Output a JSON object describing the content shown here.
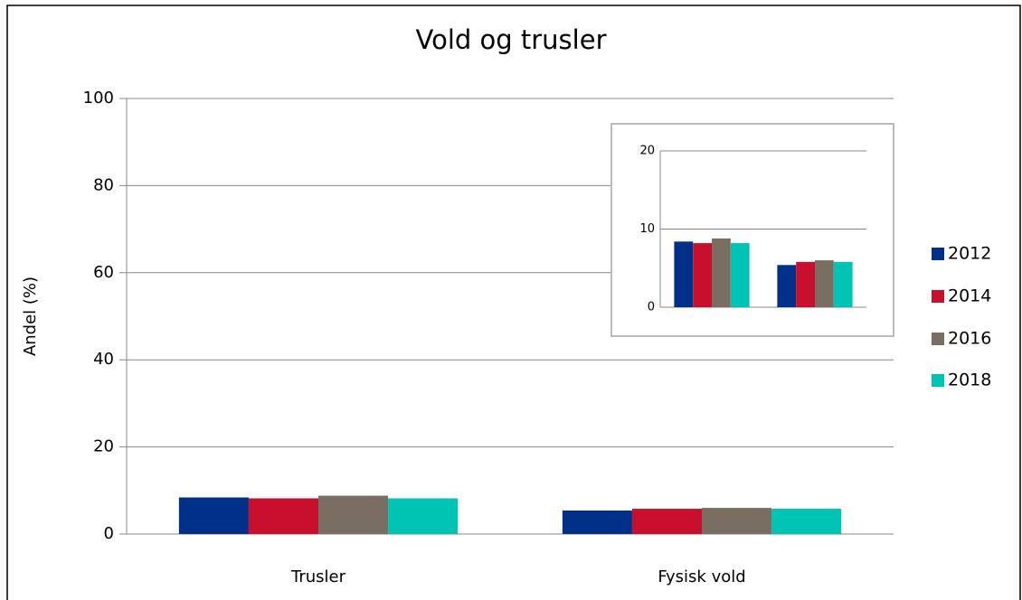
{
  "chart_data": {
    "type": "bar",
    "title": "Vold og trusler",
    "y_label": "Andel (%)",
    "categories": [
      "Trusler",
      "Fysisk vold"
    ],
    "series": [
      {
        "name": "2012",
        "color": "#003087",
        "values": [
          8.4,
          5.4
        ]
      },
      {
        "name": "2014",
        "color": "#c8102e",
        "values": [
          8.2,
          5.8
        ]
      },
      {
        "name": "2016",
        "color": "#7a6e62",
        "values": [
          8.8,
          6.0
        ]
      },
      {
        "name": "2018",
        "color": "#00c4b3",
        "values": [
          8.2,
          5.8
        ]
      }
    ],
    "ylim": [
      0,
      100
    ],
    "yticks": [
      0,
      20,
      40,
      60,
      80,
      100
    ],
    "grid": true,
    "legend": "right",
    "inset": {
      "ylim": [
        0,
        20
      ],
      "yticks": [
        0,
        10,
        20
      ],
      "grid": true
    }
  }
}
